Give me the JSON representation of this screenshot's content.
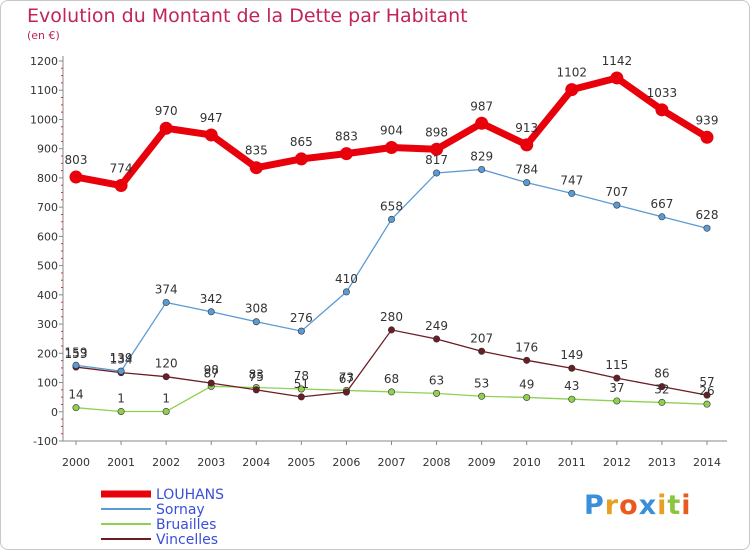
{
  "title": "Evolution du Montant de la Dette par Habitant",
  "subtitle": "(en €)",
  "logo": {
    "text": "Proxiti",
    "letters": [
      "P",
      "r",
      "o",
      "x",
      "i",
      "t",
      "i"
    ],
    "colors": [
      "#3a8fd8",
      "#e8a020",
      "#e85a20",
      "#3a8fd8",
      "#e8a020",
      "#8cc63f",
      "#e85a20"
    ]
  },
  "chart_data": {
    "type": "line",
    "title": "Evolution du Montant de la Dette par Habitant",
    "ylabel": "(en €)",
    "x": [
      "2000",
      "2001",
      "2002",
      "2003",
      "2004",
      "2005",
      "2006",
      "2007",
      "2008",
      "2009",
      "2010",
      "2011",
      "2012",
      "2013",
      "2014"
    ],
    "ylim": [
      -100,
      1200
    ],
    "yticks": [
      "-100",
      "0",
      "100",
      "200",
      "300",
      "400",
      "500",
      "600",
      "700",
      "800",
      "900",
      "1000",
      "1100",
      "1200"
    ],
    "grid": false,
    "legend_position": "bottom-left",
    "series": [
      {
        "name": "LOUHANS",
        "color": "#e8000b",
        "values": [
          803,
          774,
          970,
          947,
          835,
          865,
          883,
          904,
          898,
          987,
          913,
          1102,
          1142,
          1033,
          939
        ]
      },
      {
        "name": "Sornay",
        "color": "#5b9bd5",
        "values": [
          159,
          139,
          374,
          342,
          308,
          276,
          410,
          658,
          817,
          829,
          784,
          747,
          707,
          667,
          628
        ]
      },
      {
        "name": "Bruailles",
        "color": "#8fd14f",
        "values": [
          14,
          1,
          1,
          87,
          83,
          78,
          73,
          68,
          63,
          53,
          49,
          43,
          37,
          32,
          26
        ]
      },
      {
        "name": "Vincelles",
        "color": "#6b1c24",
        "values": [
          153,
          134,
          120,
          98,
          75,
          51,
          67,
          280,
          249,
          207,
          176,
          149,
          115,
          86,
          57
        ]
      }
    ]
  }
}
